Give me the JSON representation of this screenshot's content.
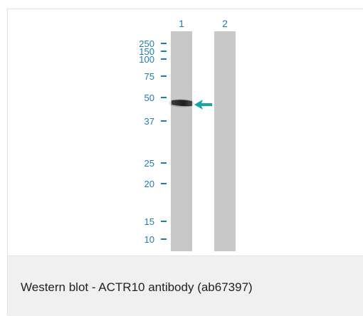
{
  "figure": {
    "lane_labels": [
      "1",
      "2"
    ],
    "mw_markers": [
      "250",
      "150",
      "100",
      "75",
      "50",
      "37",
      "25",
      "20",
      "15",
      "10"
    ],
    "arrow_color": "#1aa6a0",
    "label_color": "#1f7ea9",
    "lane_color": "#c8c8c8"
  },
  "caption": {
    "text": "Western blot - ACTR10 antibody (ab67397)"
  }
}
